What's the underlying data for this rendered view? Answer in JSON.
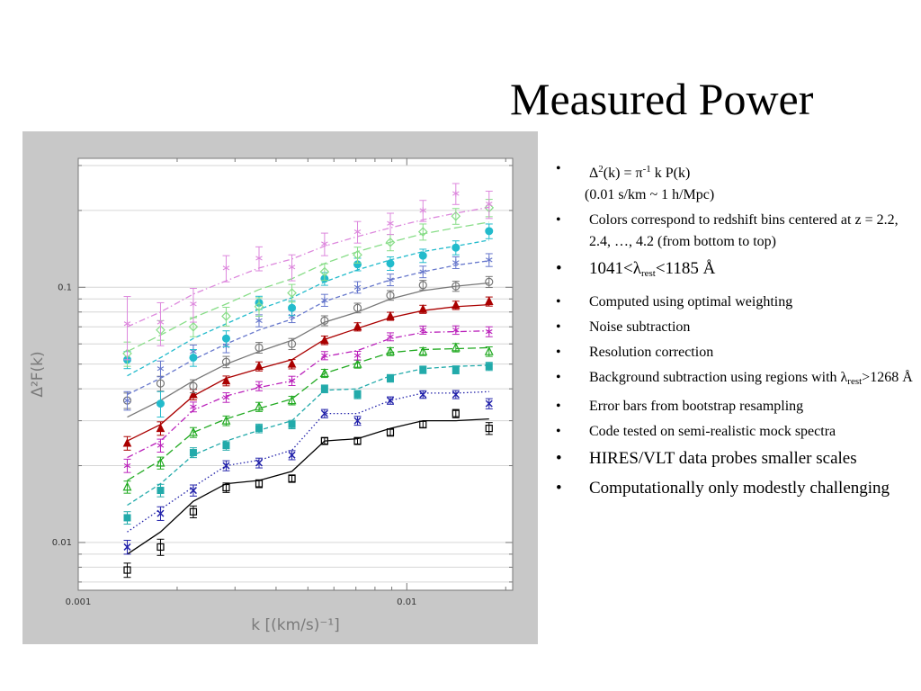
{
  "title": "Measured Power",
  "bullets": [
    {
      "segments": [
        {
          "t": "Δ"
        },
        {
          "t": "2",
          "s": "sup"
        },
        {
          "t": "(k) = π"
        },
        {
          "t": "-1",
          "s": "sup"
        },
        {
          "t": " k P(k)"
        }
      ],
      "size": "small"
    },
    {
      "segments": [
        {
          "t": "(0.01 s/km ~ 1 h/Mpc)"
        }
      ],
      "size": "small",
      "nobullet": true
    },
    {
      "segments": [
        {
          "t": "Colors correspond to redshift bins centered at z = 2.2, 2.4, …, 4.2 (from bottom to top)"
        }
      ],
      "size": "small"
    },
    {
      "segments": [
        {
          "t": "1041<λ"
        },
        {
          "t": "rest",
          "s": "sub"
        },
        {
          "t": "<1185 Å"
        }
      ],
      "size": "large"
    },
    {
      "segments": [
        {
          "t": "Computed using optimal weighting"
        }
      ],
      "size": "small"
    },
    {
      "segments": [
        {
          "t": "Noise subtraction"
        }
      ],
      "size": "small"
    },
    {
      "segments": [
        {
          "t": "Resolution correction"
        }
      ],
      "size": "small"
    },
    {
      "segments": [
        {
          "t": "Background subtraction using regions with λ"
        },
        {
          "t": "rest",
          "s": "sub"
        },
        {
          "t": ">1268 Å"
        }
      ],
      "size": "small"
    },
    {
      "segments": [
        {
          "t": "Error bars from bootstrap resampling"
        }
      ],
      "size": "small"
    },
    {
      "segments": [
        {
          "t": "Code tested on semi-realistic mock spectra"
        }
      ],
      "size": "small"
    },
    {
      "segments": [
        {
          "t": "HIRES/VLT data probes smaller scales"
        }
      ],
      "size": "large"
    },
    {
      "segments": [
        {
          "t": "Computationally only modestly challenging"
        }
      ],
      "size": "large"
    }
  ],
  "bullet_char": "•",
  "chart_data": {
    "type": "scatter",
    "xlabel": "k [(km/s)⁻¹]",
    "ylabel": "Δ²F(k)",
    "xscale": "log",
    "yscale": "log",
    "xlim": [
      0.001,
      0.021
    ],
    "ylim": [
      0.0065,
      0.32
    ],
    "x_ticks": [
      {
        "v": 0.001,
        "label": "0.001"
      },
      {
        "v": 0.01,
        "label": "0.01"
      }
    ],
    "y_ticks": [
      {
        "v": 0.01,
        "label": "0.01"
      },
      {
        "v": 0.1,
        "label": "0.1"
      }
    ],
    "background": "#c8c8c8",
    "plot_background": "#ffffff",
    "x": [
      0.00141,
      0.00178,
      0.00224,
      0.00282,
      0.00355,
      0.00447,
      0.00562,
      0.00708,
      0.00891,
      0.0112,
      0.0141,
      0.0178
    ],
    "series": [
      {
        "z": "2.2",
        "color": "#000000",
        "marker": "square",
        "dash": "solid",
        "values": [
          0.0078,
          0.0096,
          0.0132,
          0.0164,
          0.017,
          0.0178,
          0.025,
          0.025,
          0.027,
          0.029,
          0.032,
          0.028
        ],
        "errors": [
          0.0005,
          0.0007,
          0.0007,
          0.0007,
          0.0006,
          0.0006,
          0.0008,
          0.0008,
          0.0009,
          0.0009,
          0.0012,
          0.0015
        ],
        "curve": [
          0.009,
          0.011,
          0.0145,
          0.017,
          0.0175,
          0.019,
          0.025,
          0.0255,
          0.028,
          0.03,
          0.03,
          0.0305
        ]
      },
      {
        "z": "2.4",
        "color": "#2222aa",
        "marker": "x",
        "dash": "dotted",
        "values": [
          0.0096,
          0.013,
          0.016,
          0.02,
          0.0205,
          0.022,
          0.032,
          0.03,
          0.036,
          0.038,
          0.038,
          0.035
        ],
        "errors": [
          0.0006,
          0.0008,
          0.0008,
          0.0009,
          0.0009,
          0.0009,
          0.0012,
          0.0012,
          0.0012,
          0.0013,
          0.0014,
          0.0016
        ],
        "curve": [
          0.011,
          0.0135,
          0.0165,
          0.02,
          0.021,
          0.023,
          0.032,
          0.032,
          0.036,
          0.0385,
          0.0385,
          0.039
        ]
      },
      {
        "z": "2.6",
        "color": "#22aaaa",
        "marker": "square-filled",
        "dash": "dashed",
        "values": [
          0.0125,
          0.016,
          0.0225,
          0.024,
          0.028,
          0.029,
          0.04,
          0.038,
          0.044,
          0.0475,
          0.0475,
          0.049
        ],
        "errors": [
          0.0007,
          0.0009,
          0.001,
          0.001,
          0.0011,
          0.0011,
          0.0014,
          0.0014,
          0.0015,
          0.0016,
          0.0017,
          0.0018
        ],
        "curve": [
          0.014,
          0.017,
          0.022,
          0.025,
          0.0275,
          0.03,
          0.0395,
          0.04,
          0.045,
          0.048,
          0.049,
          0.0495
        ]
      },
      {
        "z": "2.8",
        "color": "#22aa22",
        "marker": "triangle",
        "dash": "long-dash",
        "values": [
          0.0165,
          0.0205,
          0.027,
          0.03,
          0.034,
          0.036,
          0.046,
          0.05,
          0.056,
          0.056,
          0.058,
          0.056
        ],
        "errors": [
          0.0009,
          0.0011,
          0.0012,
          0.0013,
          0.0014,
          0.0014,
          0.0017,
          0.0018,
          0.002,
          0.002,
          0.0022,
          0.0024
        ],
        "curve": [
          0.0175,
          0.021,
          0.027,
          0.0305,
          0.0335,
          0.0365,
          0.046,
          0.0505,
          0.0555,
          0.057,
          0.0575,
          0.058
        ]
      },
      {
        "z": "3.0",
        "color": "#bb22bb",
        "marker": "asterisk",
        "dash": "dash-dot",
        "values": [
          0.02,
          0.024,
          0.034,
          0.037,
          0.041,
          0.043,
          0.054,
          0.054,
          0.064,
          0.068,
          0.068,
          0.067
        ],
        "errors": [
          0.0012,
          0.0014,
          0.0015,
          0.0016,
          0.0017,
          0.0018,
          0.002,
          0.0021,
          0.0023,
          0.0025,
          0.0026,
          0.003
        ],
        "curve": [
          0.0215,
          0.025,
          0.033,
          0.0375,
          0.0405,
          0.043,
          0.0535,
          0.0565,
          0.063,
          0.0665,
          0.067,
          0.0675
        ]
      },
      {
        "z": "3.2",
        "color": "#aa0000",
        "marker": "triangle-filled",
        "dash": "solid",
        "values": [
          0.0245,
          0.028,
          0.038,
          0.043,
          0.049,
          0.05,
          0.062,
          0.07,
          0.077,
          0.082,
          0.085,
          0.088
        ],
        "errors": [
          0.0015,
          0.0017,
          0.0018,
          0.0019,
          0.002,
          0.0021,
          0.0024,
          0.0026,
          0.0028,
          0.003,
          0.0032,
          0.0036
        ],
        "curve": [
          0.025,
          0.029,
          0.0375,
          0.044,
          0.048,
          0.052,
          0.0625,
          0.069,
          0.076,
          0.081,
          0.084,
          0.0855
        ]
      },
      {
        "z": "3.4",
        "color": "#777777",
        "marker": "circle",
        "dash": "solid",
        "values": [
          0.036,
          0.042,
          0.041,
          0.051,
          0.058,
          0.06,
          0.074,
          0.083,
          0.093,
          0.102,
          0.101,
          0.105
        ],
        "errors": [
          0.0025,
          0.0028,
          0.0024,
          0.0026,
          0.0028,
          0.003,
          0.0033,
          0.0036,
          0.004,
          0.0044,
          0.0046,
          0.0052
        ],
        "curve": [
          0.031,
          0.036,
          0.043,
          0.05,
          0.056,
          0.062,
          0.073,
          0.08,
          0.09,
          0.097,
          0.101,
          0.104
        ]
      },
      {
        "z": "3.6",
        "color": "#6677cc",
        "marker": "asterisk",
        "dash": "dashed",
        "values": [
          0.036,
          0.048,
          0.056,
          0.059,
          0.074,
          0.077,
          0.089,
          0.1,
          0.107,
          0.115,
          0.125,
          0.128
        ],
        "errors": [
          0.003,
          0.0034,
          0.0034,
          0.0036,
          0.004,
          0.0043,
          0.0048,
          0.0052,
          0.0056,
          0.006,
          0.0066,
          0.0074
        ],
        "curve": [
          0.038,
          0.044,
          0.052,
          0.06,
          0.068,
          0.075,
          0.088,
          0.097,
          0.107,
          0.115,
          0.122,
          0.127
        ]
      },
      {
        "z": "3.8",
        "color": "#22bbcc",
        "marker": "circle-filled",
        "dash": "dashed",
        "values": [
          0.052,
          0.035,
          0.053,
          0.063,
          0.087,
          0.083,
          0.108,
          0.123,
          0.124,
          0.133,
          0.143,
          0.166
        ],
        "errors": [
          0.004,
          0.004,
          0.004,
          0.0045,
          0.0052,
          0.0055,
          0.0062,
          0.007,
          0.0075,
          0.008,
          0.009,
          0.011
        ],
        "curve": [
          0.045,
          0.053,
          0.063,
          0.072,
          0.082,
          0.091,
          0.105,
          0.117,
          0.128,
          0.138,
          0.145,
          0.153
        ]
      },
      {
        "z": "4.0",
        "color": "#88dd88",
        "marker": "diamond",
        "dash": "long-dash",
        "values": [
          0.055,
          0.068,
          0.07,
          0.077,
          0.084,
          0.095,
          0.115,
          0.134,
          0.15,
          0.165,
          0.19,
          0.205
        ],
        "errors": [
          0.006,
          0.006,
          0.006,
          0.0065,
          0.007,
          0.0076,
          0.0086,
          0.0096,
          0.011,
          0.012,
          0.0135,
          0.016
        ],
        "curve": [
          0.056,
          0.065,
          0.076,
          0.086,
          0.098,
          0.108,
          0.124,
          0.138,
          0.15,
          0.162,
          0.171,
          0.18
        ]
      },
      {
        "z": "4.2",
        "color": "#dd88dd",
        "marker": "asterisk",
        "dash": "dash-dot",
        "values": [
          0.072,
          0.073,
          0.086,
          0.119,
          0.13,
          0.12,
          0.148,
          0.165,
          0.178,
          0.2,
          0.233,
          0.212
        ],
        "errors": [
          0.02,
          0.014,
          0.013,
          0.014,
          0.014,
          0.014,
          0.015,
          0.016,
          0.017,
          0.019,
          0.022,
          0.026
        ],
        "curve": [
          0.07,
          0.08,
          0.094,
          0.106,
          0.119,
          0.129,
          0.145,
          0.158,
          0.171,
          0.184,
          0.195,
          0.206
        ]
      }
    ]
  }
}
